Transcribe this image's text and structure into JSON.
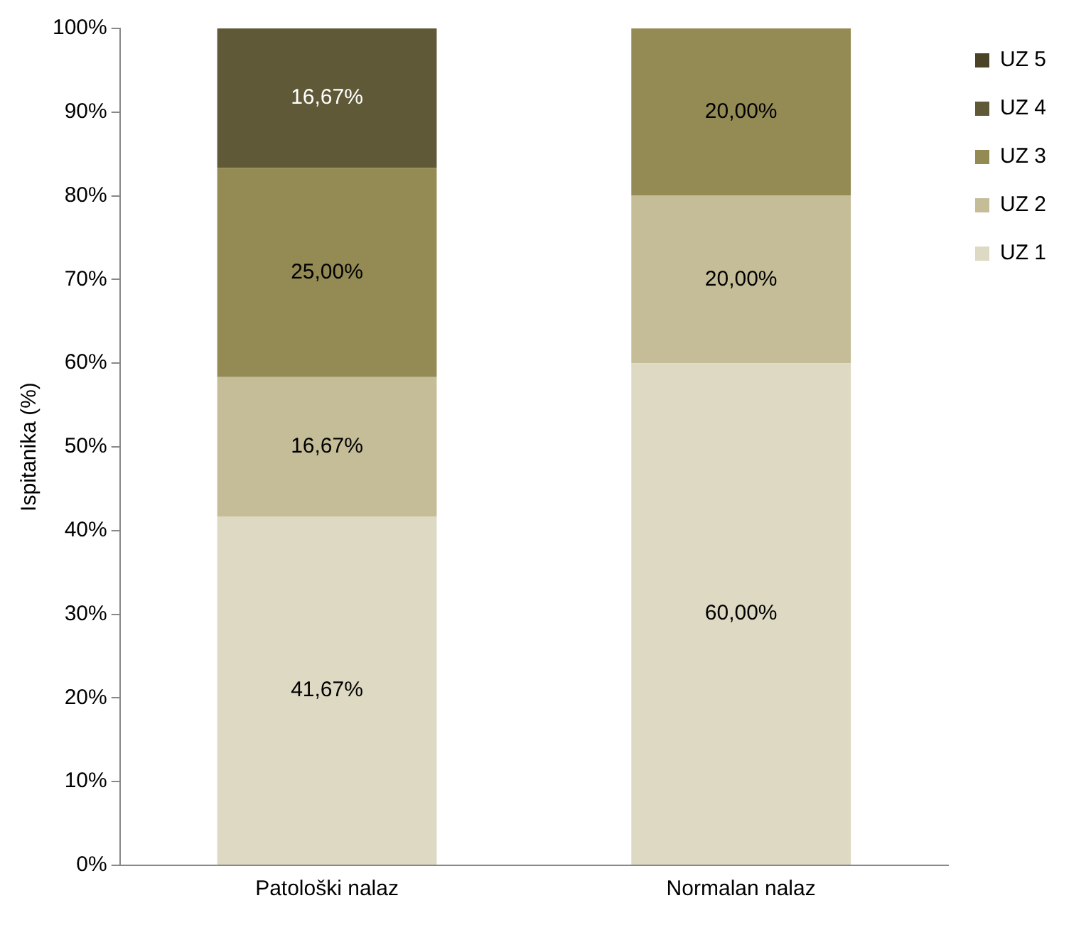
{
  "chart_data": {
    "type": "bar",
    "stacked": true,
    "ylabel": "Ispitanika (%)",
    "categories": [
      "Patološki nalaz",
      "Normalan nalaz"
    ],
    "series": [
      {
        "name": "UZ 1",
        "color": "#ddd9c3",
        "values": [
          41.67,
          60
        ],
        "value_labels": [
          "41,67%",
          "60,00%"
        ]
      },
      {
        "name": "UZ 2",
        "color": "#c4bd97",
        "values": [
          16.67,
          20
        ],
        "value_labels": [
          "16,67%",
          "20,00%"
        ]
      },
      {
        "name": "UZ 3",
        "color": "#948a54",
        "values": [
          25,
          20
        ],
        "value_labels": [
          "25,00%",
          "20,00%"
        ]
      },
      {
        "name": "UZ 4",
        "color": "#5f5937",
        "values": [
          16.67,
          0
        ],
        "value_labels": [
          "16,67%",
          null
        ]
      },
      {
        "name": "UZ 5",
        "color": "#4a4328",
        "values": [
          0,
          0
        ],
        "value_labels": [
          null,
          null
        ]
      }
    ],
    "ylim": [
      0,
      100
    ],
    "yticks": [
      {
        "value": 0,
        "label": "0%"
      },
      {
        "value": 10,
        "label": "10%"
      },
      {
        "value": 20,
        "label": "20%"
      },
      {
        "value": 30,
        "label": "30%"
      },
      {
        "value": 40,
        "label": "40%"
      },
      {
        "value": 50,
        "label": "50%"
      },
      {
        "value": 60,
        "label": "60%"
      },
      {
        "value": 70,
        "label": "70%"
      },
      {
        "value": 80,
        "label": "80%"
      },
      {
        "value": 90,
        "label": "90%"
      },
      {
        "value": 100,
        "label": "100%"
      }
    ],
    "grid": false,
    "legend": "right"
  }
}
